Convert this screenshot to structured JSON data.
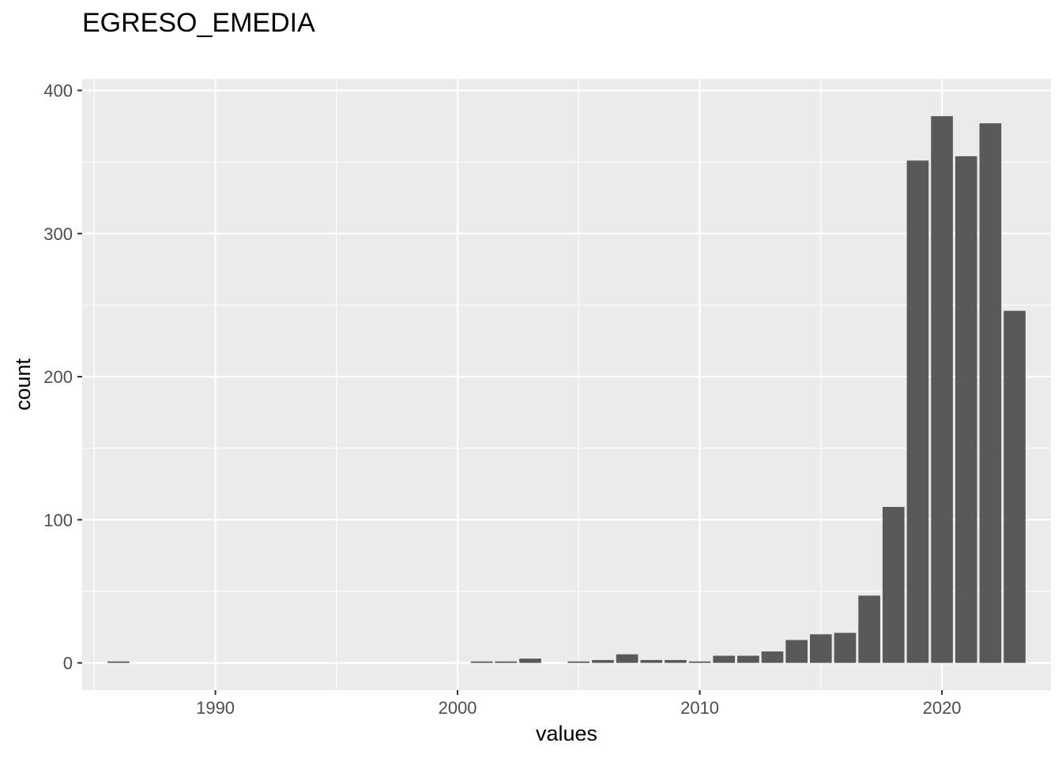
{
  "chart_data": {
    "type": "bar",
    "title": "EGRESO_EMEDIA",
    "xlabel": "values",
    "ylabel": "count",
    "xlim": [
      1984.5,
      2024.5
    ],
    "ylim": [
      -19,
      408
    ],
    "x_ticks": [
      1990,
      2000,
      2010,
      2020
    ],
    "y_ticks": [
      0,
      100,
      200,
      300,
      400
    ],
    "bar_color": "#595959",
    "panel_background": "#ebebeb",
    "grid": true,
    "bins": [
      {
        "x": 1986,
        "count": 1
      },
      {
        "x": 2001,
        "count": 1
      },
      {
        "x": 2002,
        "count": 1
      },
      {
        "x": 2003,
        "count": 3
      },
      {
        "x": 2005,
        "count": 1
      },
      {
        "x": 2006,
        "count": 2
      },
      {
        "x": 2007,
        "count": 6
      },
      {
        "x": 2008,
        "count": 2
      },
      {
        "x": 2009,
        "count": 2
      },
      {
        "x": 2010,
        "count": 1
      },
      {
        "x": 2011,
        "count": 5
      },
      {
        "x": 2012,
        "count": 5
      },
      {
        "x": 2013,
        "count": 8
      },
      {
        "x": 2014,
        "count": 16
      },
      {
        "x": 2015,
        "count": 20
      },
      {
        "x": 2016,
        "count": 21
      },
      {
        "x": 2017,
        "count": 47
      },
      {
        "x": 2018,
        "count": 109
      },
      {
        "x": 2019,
        "count": 351
      },
      {
        "x": 2020,
        "count": 382
      },
      {
        "x": 2021,
        "count": 354
      },
      {
        "x": 2022,
        "count": 377
      },
      {
        "x": 2023,
        "count": 246
      }
    ]
  }
}
